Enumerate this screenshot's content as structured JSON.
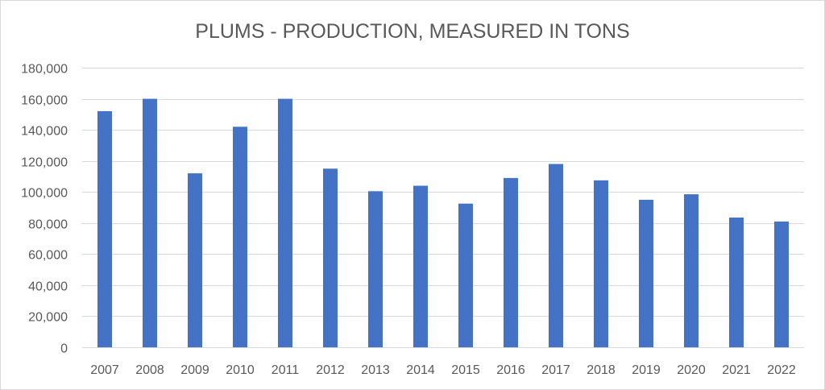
{
  "chart_data": {
    "type": "bar",
    "title": "PLUMS - PRODUCTION, MEASURED IN TONS",
    "xlabel": "",
    "ylabel": "",
    "categories": [
      "2007",
      "2008",
      "2009",
      "2010",
      "2011",
      "2012",
      "2013",
      "2014",
      "2015",
      "2016",
      "2017",
      "2018",
      "2019",
      "2020",
      "2021",
      "2022"
    ],
    "series": [
      {
        "values": [
          152000,
          160000,
          112000,
          142000,
          160000,
          115000,
          100500,
          104000,
          92500,
          109000,
          118000,
          107500,
          95000,
          98500,
          83500,
          81000
        ],
        "color": "#4472c4"
      }
    ],
    "ylim": [
      0,
      180000
    ],
    "yticks": [
      "0",
      "20,000",
      "40,000",
      "60,000",
      "80,000",
      "100,000",
      "120,000",
      "140,000",
      "160,000",
      "180,000"
    ],
    "grid": true,
    "legend": "none"
  }
}
